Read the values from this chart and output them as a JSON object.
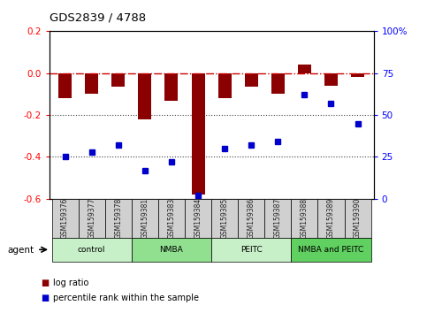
{
  "title": "GDS2839 / 4788",
  "samples": [
    "GSM159376",
    "GSM159377",
    "GSM159378",
    "GSM159381",
    "GSM159383",
    "GSM159384",
    "GSM159385",
    "GSM159386",
    "GSM159387",
    "GSM159388",
    "GSM159389",
    "GSM159390"
  ],
  "log_ratio": [
    -0.12,
    -0.1,
    -0.065,
    -0.22,
    -0.13,
    -0.58,
    -0.12,
    -0.065,
    -0.1,
    0.04,
    -0.06,
    -0.02
  ],
  "percentile_rank": [
    25,
    28,
    32,
    17,
    22,
    2,
    30,
    32,
    34,
    62,
    57,
    45
  ],
  "groups": [
    {
      "label": "control",
      "start": 0,
      "end": 3,
      "color": "#c8f0c8"
    },
    {
      "label": "NMBA",
      "start": 3,
      "end": 6,
      "color": "#90e090"
    },
    {
      "label": "PEITC",
      "start": 6,
      "end": 9,
      "color": "#c8f0c8"
    },
    {
      "label": "NMBA and PEITC",
      "start": 9,
      "end": 12,
      "color": "#60d060"
    }
  ],
  "ylim_left": [
    -0.6,
    0.2
  ],
  "ylim_right": [
    0,
    100
  ],
  "yticks_left": [
    -0.6,
    -0.4,
    -0.2,
    0.0,
    0.2
  ],
  "yticks_right": [
    0,
    25,
    50,
    75,
    100
  ],
  "ytick_labels_right": [
    "0",
    "25",
    "50",
    "75",
    "100%"
  ],
  "bar_color": "#8b0000",
  "dot_color": "#0000cc",
  "hline_color": "#cc0000",
  "dotted_line_color": "#404040",
  "bg_color": "#ffffff",
  "agent_label": "agent",
  "legend_logratio": "log ratio",
  "legend_percentile": "percentile rank within the sample",
  "bar_width": 0.5
}
